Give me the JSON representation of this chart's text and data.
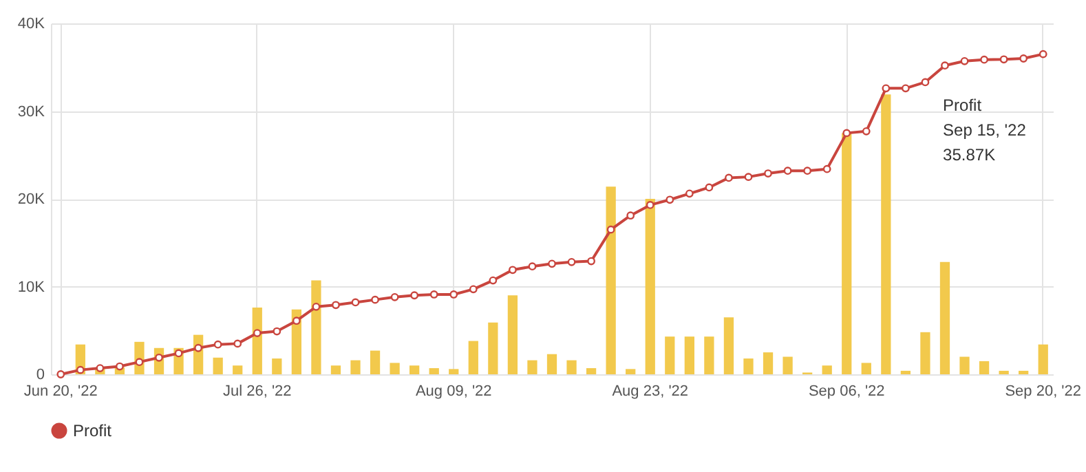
{
  "chart_data": {
    "type": "bar",
    "categories": [
      "Jun 20, '22",
      null,
      null,
      null,
      null,
      null,
      null,
      null,
      null,
      null,
      "Jul 26, '22",
      null,
      null,
      null,
      null,
      null,
      null,
      null,
      null,
      null,
      "Aug 09, '22",
      null,
      null,
      null,
      null,
      null,
      null,
      null,
      null,
      null,
      "Aug 23, '22",
      null,
      null,
      null,
      null,
      null,
      null,
      null,
      null,
      null,
      "Sep 06, '22",
      null,
      null,
      null,
      null,
      null,
      null,
      null,
      null,
      null,
      "Sep 20, '22"
    ],
    "series": [
      {
        "color": "#f2c94c",
        "values": [
          0,
          3400,
          700,
          800,
          3700,
          3000,
          3000,
          4500,
          1900,
          1000,
          7600,
          1800,
          7400,
          10700,
          1000,
          1600,
          2700,
          1300,
          1000,
          700,
          600,
          3800,
          5900,
          9000,
          1600,
          2300,
          1600,
          700,
          21400,
          600,
          20000,
          4300,
          4300,
          4300,
          6500,
          1800,
          2500,
          2000,
          200,
          1000,
          27500,
          1300,
          31900,
          400,
          4800,
          12800,
          2000,
          1500,
          400,
          400,
          3400
        ]
      },
      {
        "type": "line",
        "name": "Profit",
        "color": "#c9453e",
        "values": [
          0,
          500,
          700,
          900,
          1400,
          1900,
          2400,
          3000,
          3400,
          3500,
          4700,
          4900,
          6100,
          7700,
          7900,
          8200,
          8500,
          8800,
          9000,
          9100,
          9100,
          9700,
          10700,
          11900,
          12300,
          12600,
          12800,
          12900,
          16500,
          18100,
          19300,
          19900,
          20600,
          21300,
          22400,
          22500,
          22900,
          23200,
          23200,
          23400,
          27500,
          27700,
          32600,
          32600,
          33300,
          35200,
          35700,
          35870,
          35900,
          36000,
          36500
        ]
      }
    ],
    "ylim": [
      0,
      40000
    ],
    "yticks": [
      0,
      {
        "value": 10000,
        "label": "10K"
      },
      {
        "value": 20000,
        "label": "20K"
      },
      {
        "value": 30000,
        "label": "30K"
      },
      {
        "value": 40000,
        "label": "40K"
      }
    ],
    "grid": true,
    "legend": "bottom",
    "marker": "circle",
    "line_style": "solid",
    "annotations": [
      {
        "text": "Profit\nSep 15, '22\n35.87K",
        "y": 35870
      }
    ]
  }
}
